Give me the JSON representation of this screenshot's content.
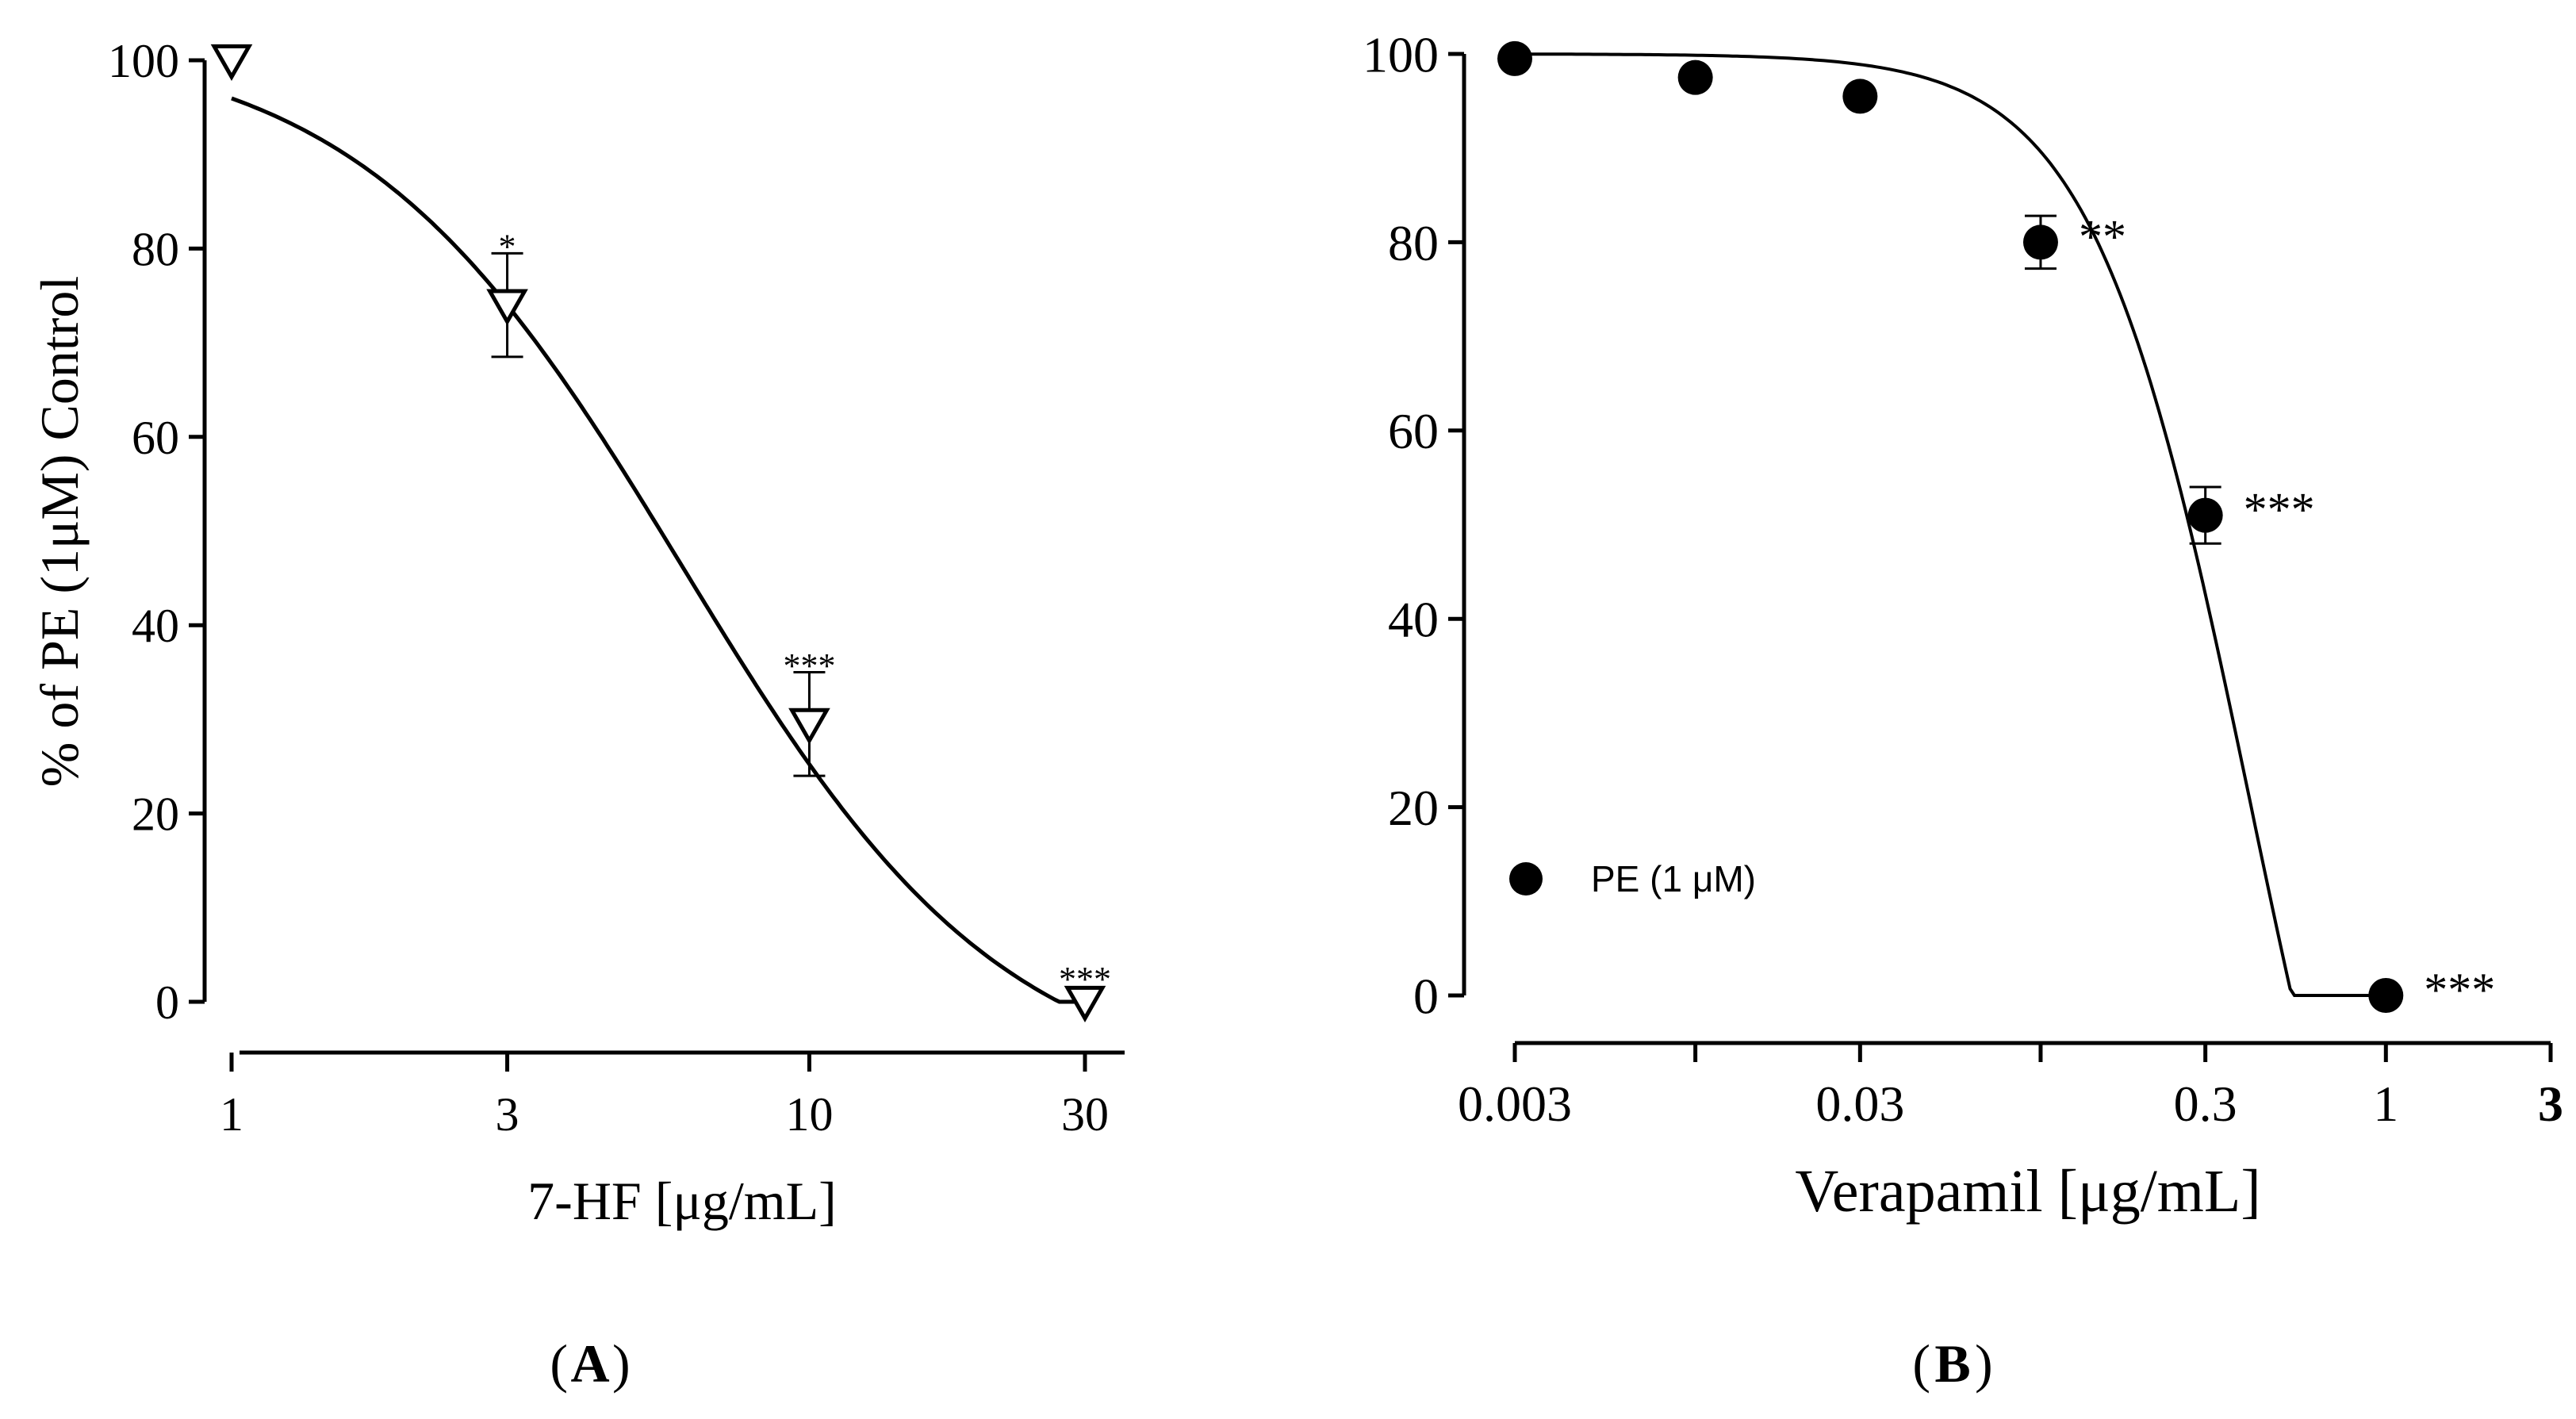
{
  "chart_data": [
    {
      "panel": "A",
      "panel_label": "A",
      "type": "scatter",
      "x_scale": "log",
      "xlabel": "7-HF [μg/mL]",
      "ylabel": "% of PE (1μM) Control",
      "x_ticks": [
        1,
        3,
        10,
        30
      ],
      "x_tick_labels": [
        "1",
        "3",
        "10",
        "30"
      ],
      "y_ticks": [
        0,
        20,
        40,
        60,
        80,
        100
      ],
      "y_tick_labels": [
        "0",
        "20",
        "40",
        "60",
        "80",
        "100"
      ],
      "xlim": [
        1,
        30
      ],
      "ylim": [
        0,
        100
      ],
      "marker": "open-triangle-down",
      "points": [
        {
          "x": 1,
          "y": 100,
          "err": 0,
          "sig": ""
        },
        {
          "x": 3,
          "y": 74,
          "err": 5.5,
          "sig": "*"
        },
        {
          "x": 10,
          "y": 29.5,
          "err": 5.5,
          "sig": "***"
        },
        {
          "x": 30,
          "y": 0,
          "err": 0,
          "sig": "***"
        }
      ],
      "fit_curve": {
        "top": 102.5,
        "bottom": -10,
        "log_ec50": 0.78,
        "hill": 1.55
      }
    },
    {
      "panel": "B",
      "panel_label": "B",
      "type": "scatter",
      "x_scale": "log",
      "xlabel": "Verapamil [μg/mL]",
      "x_ticks": [
        0.003,
        0.03,
        0.3,
        1,
        3
      ],
      "x_tick_labels": [
        "0.003",
        "0.03",
        "0.3",
        "1",
        "3"
      ],
      "y_ticks": [
        0,
        20,
        40,
        60,
        80,
        100
      ],
      "y_tick_labels": [
        "0",
        "20",
        "40",
        "60",
        "80",
        "100"
      ],
      "xlim": [
        0.003,
        3
      ],
      "ylim": [
        0,
        100
      ],
      "marker": "filled-circle",
      "legend": {
        "label": "PE (1 μM)",
        "position": "bottom-left"
      },
      "points": [
        {
          "x": 0.003,
          "y": 99.5,
          "err": 0,
          "sig": ""
        },
        {
          "x": 0.01,
          "y": 97.5,
          "err": 0,
          "sig": ""
        },
        {
          "x": 0.03,
          "y": 95.5,
          "err": 0,
          "sig": ""
        },
        {
          "x": 0.1,
          "y": 80,
          "err": 2.8,
          "sig": "**"
        },
        {
          "x": 0.3,
          "y": 51,
          "err": 3.0,
          "sig": "***"
        },
        {
          "x": 1,
          "y": 0,
          "err": 0,
          "sig": "***"
        }
      ],
      "fit_curve": {
        "top": 100,
        "bottom": -60,
        "log_ec50": -0.39,
        "hill": 1.9
      }
    }
  ]
}
